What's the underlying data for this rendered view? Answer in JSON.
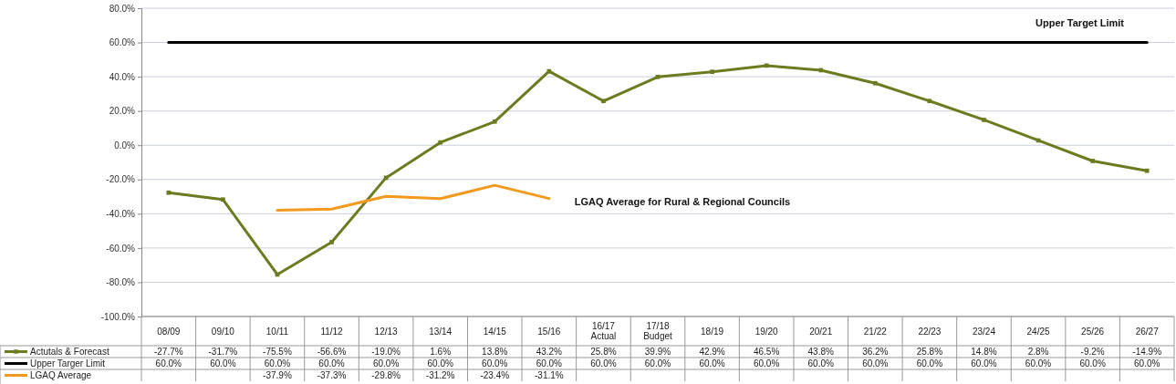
{
  "chart_data": {
    "type": "line",
    "categories": [
      "08/09",
      "09/10",
      "10/11",
      "11/12",
      "12/13",
      "13/14",
      "14/15",
      "15/16",
      "16/17 Actual",
      "17/18 Budget",
      "18/19",
      "19/20",
      "20/21",
      "21/22",
      "22/23",
      "23/24",
      "24/25",
      "25/26",
      "26/27"
    ],
    "series": [
      {
        "name": "Actutals & Forecast",
        "color": "#6b7b1f",
        "marker": "square",
        "values": [
          -27.7,
          -31.7,
          -75.5,
          -56.6,
          -19.0,
          1.6,
          13.8,
          43.2,
          25.8,
          39.9,
          42.9,
          46.5,
          43.8,
          36.2,
          25.8,
          14.8,
          2.8,
          -9.2,
          -14.9
        ],
        "value_labels": [
          "-27.7%",
          "-31.7%",
          "-75.5%",
          "-56.6%",
          "-19.0%",
          "1.6%",
          "13.8%",
          "43.2%",
          "25.8%",
          "39.9%",
          "42.9%",
          "46.5%",
          "43.8%",
          "36.2%",
          "25.8%",
          "14.8%",
          "2.8%",
          "-9.2%",
          "-14.9%"
        ]
      },
      {
        "name": "Upper Targer Limit",
        "color": "#000000",
        "marker": "none",
        "values": [
          60,
          60,
          60,
          60,
          60,
          60,
          60,
          60,
          60,
          60,
          60,
          60,
          60,
          60,
          60,
          60,
          60,
          60,
          60
        ],
        "value_labels": [
          "60.0%",
          "60.0%",
          "60.0%",
          "60.0%",
          "60.0%",
          "60.0%",
          "60.0%",
          "60.0%",
          "60.0%",
          "60.0%",
          "60.0%",
          "60.0%",
          "60.0%",
          "60.0%",
          "60.0%",
          "60.0%",
          "60.0%",
          "60.0%",
          "60.0%"
        ]
      },
      {
        "name": "LGAQ Average",
        "color": "#f39a1e",
        "marker": "none",
        "values": [
          null,
          null,
          -37.9,
          -37.3,
          -29.8,
          -31.2,
          -23.4,
          -31.1,
          null,
          null,
          null,
          null,
          null,
          null,
          null,
          null,
          null,
          null,
          null
        ],
        "value_labels": [
          null,
          null,
          "-37.9%",
          "-37.3%",
          "-29.8%",
          "-31.2%",
          "-23.4%",
          "-31.1%",
          null,
          null,
          null,
          null,
          null,
          null,
          null,
          null,
          null,
          null,
          null
        ]
      }
    ],
    "ylim": [
      -100,
      80
    ],
    "yticks": [
      {
        "value": -100,
        "label": "-100.0%"
      },
      {
        "value": -80,
        "label": "-80.0%"
      },
      {
        "value": -60,
        "label": "-60.0%"
      },
      {
        "value": -40,
        "label": "-40.0%"
      },
      {
        "value": -20,
        "label": "-20.0%"
      },
      {
        "value": 0,
        "label": "0.0%"
      },
      {
        "value": 20,
        "label": "20.0%"
      },
      {
        "value": 40,
        "label": "40.0%"
      },
      {
        "value": 60,
        "label": "60.0%"
      },
      {
        "value": 80,
        "label": "80.0%"
      }
    ],
    "grid": "y",
    "legend": "bottom",
    "annotations": [
      "Upper Target Limit",
      {
        "text": "LGAQ Average for Rural & Regional Councils",
        "x": "15/16",
        "y": -33
      }
    ]
  }
}
